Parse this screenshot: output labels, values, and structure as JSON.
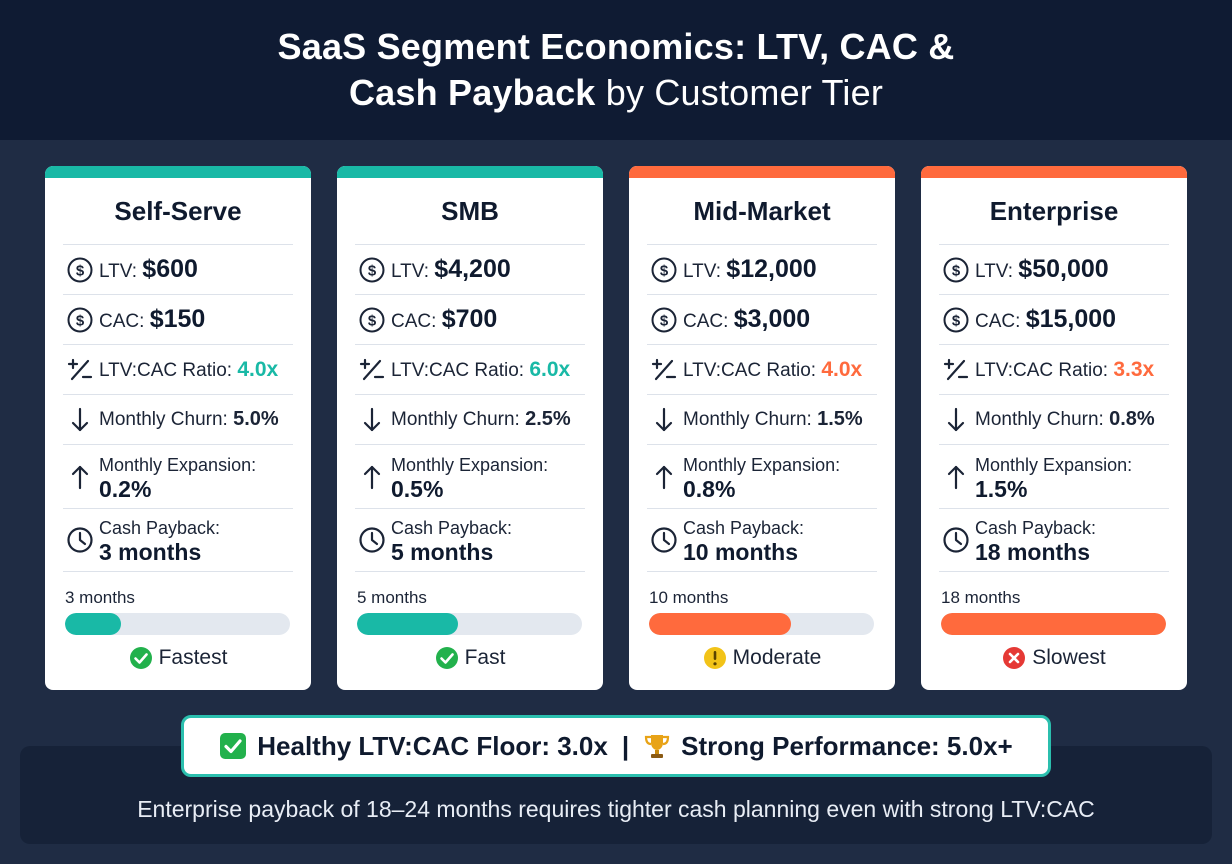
{
  "header": {
    "title_line1": "SaaS Segment Economics: LTV, CAC &",
    "title_line2_bold": "Cash Payback",
    "title_line2_light": " by Customer Tier"
  },
  "colors": {
    "teal": "#19b9a6",
    "orange": "#ff6a3d",
    "check_green": "#22b14c",
    "warn_yellow": "#f2c318",
    "error_red": "#e53935"
  },
  "labels": {
    "ltv": "LTV: ",
    "cac": "CAC: ",
    "ratio": "LTV:CAC Ratio: ",
    "churn": "Monthly Churn: ",
    "expansion": "Monthly Expansion:",
    "payback": "Cash Payback:"
  },
  "tiers": [
    {
      "name": "Self-Serve",
      "accent": "teal",
      "ltv": "$600",
      "cac": "$150",
      "ratio": "4.0x",
      "churn": "5.0%",
      "expansion": "0.2%",
      "payback": "3 months",
      "payback_bar_label": "3 months",
      "payback_fill_fraction": 0.25,
      "status_icon": "check-circle-icon",
      "status": "Fastest"
    },
    {
      "name": "SMB",
      "accent": "teal",
      "ltv": "$4,200",
      "cac": "$700",
      "ratio": "6.0x",
      "churn": "2.5%",
      "expansion": "0.5%",
      "payback": "5 months",
      "payback_bar_label": "5 months",
      "payback_fill_fraction": 0.45,
      "status_icon": "check-circle-icon",
      "status": "Fast"
    },
    {
      "name": "Mid-Market",
      "accent": "orange",
      "ltv": "$12,000",
      "cac": "$3,000",
      "ratio": "4.0x",
      "churn": "1.5%",
      "expansion": "0.8%",
      "payback": "10 months",
      "payback_bar_label": "10 months",
      "payback_fill_fraction": 0.63,
      "status_icon": "warning-circle-icon",
      "status": "Moderate"
    },
    {
      "name": "Enterprise",
      "accent": "orange",
      "ltv": "$50,000",
      "cac": "$15,000",
      "ratio": "3.3x",
      "churn": "0.8%",
      "expansion": "1.5%",
      "payback": "18 months",
      "payback_bar_label": "18 months",
      "payback_fill_fraction": 1.0,
      "status_icon": "x-circle-icon",
      "status": "Slowest"
    }
  ],
  "benchmark": {
    "floor_icon": "check-box-icon",
    "floor": "Healthy LTV:CAC Floor: 3.0x",
    "separator": "|",
    "strong_icon": "trophy-icon",
    "strong": "Strong Performance: 5.0x+"
  },
  "footer": {
    "note": "Enterprise payback of 18–24 months requires tighter cash planning even with strong LTV:CAC"
  }
}
